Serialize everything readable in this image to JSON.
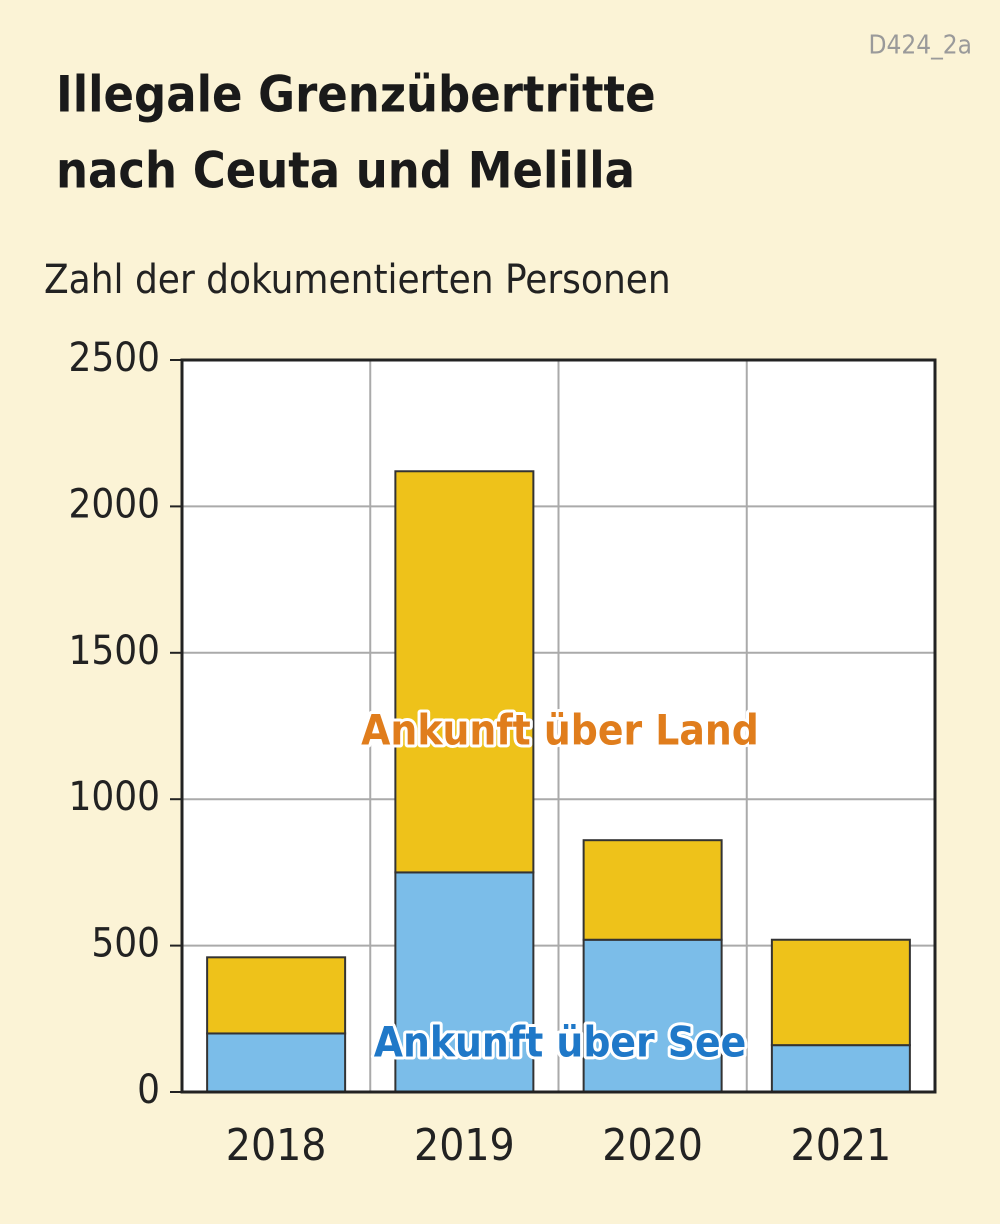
{
  "chart_data": {
    "type": "stacked_bar",
    "code": "D424_2a",
    "title": [
      "Illegale Grenzübertritte",
      "nach Ceuta und Melilla"
    ],
    "subtitle": "Zahl der dokumentierten Personen",
    "categories": [
      "2018",
      "2019",
      "2020",
      "2021"
    ],
    "series": [
      {
        "name": "Ankunft über See",
        "color": "#7bbde9",
        "label_color": "#1f78c8",
        "values": [
          200,
          750,
          520,
          160
        ]
      },
      {
        "name": "Ankunft über Land",
        "color": "#eec21a",
        "label_color": "#e07d1c",
        "values": [
          260,
          1370,
          340,
          360
        ]
      }
    ],
    "ylim": [
      0,
      2500
    ],
    "yticks": [
      0,
      500,
      1000,
      1500,
      2000,
      2500
    ],
    "grid": true
  }
}
